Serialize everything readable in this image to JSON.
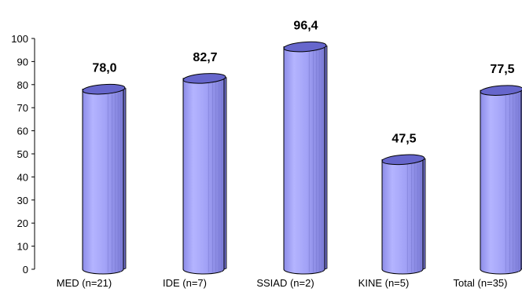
{
  "chart_data": {
    "type": "bar",
    "categories": [
      "MED (n=21)",
      "IDE (n=7)",
      "SSIAD (n=2)",
      "KINE (n=5)",
      "Total (n=35)"
    ],
    "values": [
      78.0,
      82.7,
      96.4,
      47.5,
      77.5
    ],
    "value_labels": [
      "78,0",
      "82,7",
      "96,4",
      "47,5",
      "77,5"
    ],
    "title": "",
    "xlabel": "",
    "ylabel": "",
    "ylim": [
      0,
      100
    ],
    "yticks": [
      0,
      10,
      20,
      30,
      40,
      50,
      60,
      70,
      80,
      90,
      100
    ],
    "grid": false,
    "style": "3d-cylinder",
    "colors": {
      "bar_fill": "#9b9bf2",
      "bar_top": "#6666cc",
      "bar_stroke": "#000000",
      "axis": "#000000"
    }
  }
}
